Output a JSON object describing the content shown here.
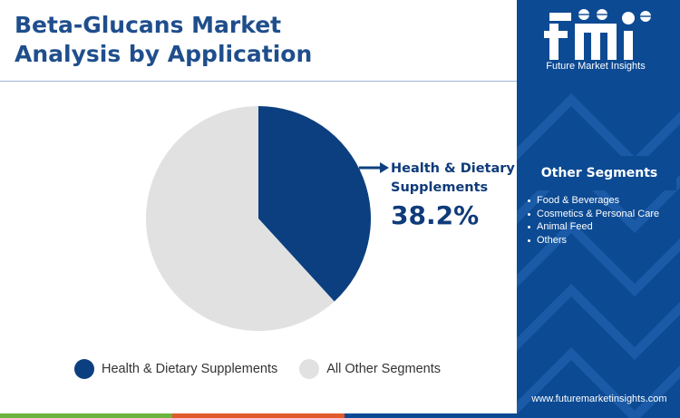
{
  "title": {
    "line1": "Beta-Glucans Market",
    "line2": "Analysis by Application"
  },
  "chart_data": {
    "type": "pie",
    "slices": [
      {
        "label": "Health & Dietary Supplements",
        "value": 38.2,
        "color": "#0c3f7f"
      },
      {
        "label": "All Other Segments",
        "value": 61.8,
        "color": "#e1e1e1"
      }
    ],
    "start_angle_deg": 0,
    "direction": "clockwise"
  },
  "callout": {
    "label_line1": "Health & Dietary",
    "label_line2": "Supplements",
    "value": "38.2%"
  },
  "legend": [
    {
      "label": "Health & Dietary Supplements",
      "color": "#0c3f7f"
    },
    {
      "label": "All Other Segments",
      "color": "#e1e1e1"
    }
  ],
  "panel": {
    "logo_text": "fmi",
    "logo_subtitle": "Future Market Insights",
    "segments_title": "Other Segments",
    "segments": [
      "Food & Beverages",
      "Cosmetics & Personal Care",
      "Animal Feed",
      "Others"
    ],
    "website": "www.futuremarketinsights.com",
    "background": "#0c4a93"
  },
  "bottom_bar_colors": [
    "#6cb33f",
    "#e05a2b",
    "#0c4a93"
  ]
}
